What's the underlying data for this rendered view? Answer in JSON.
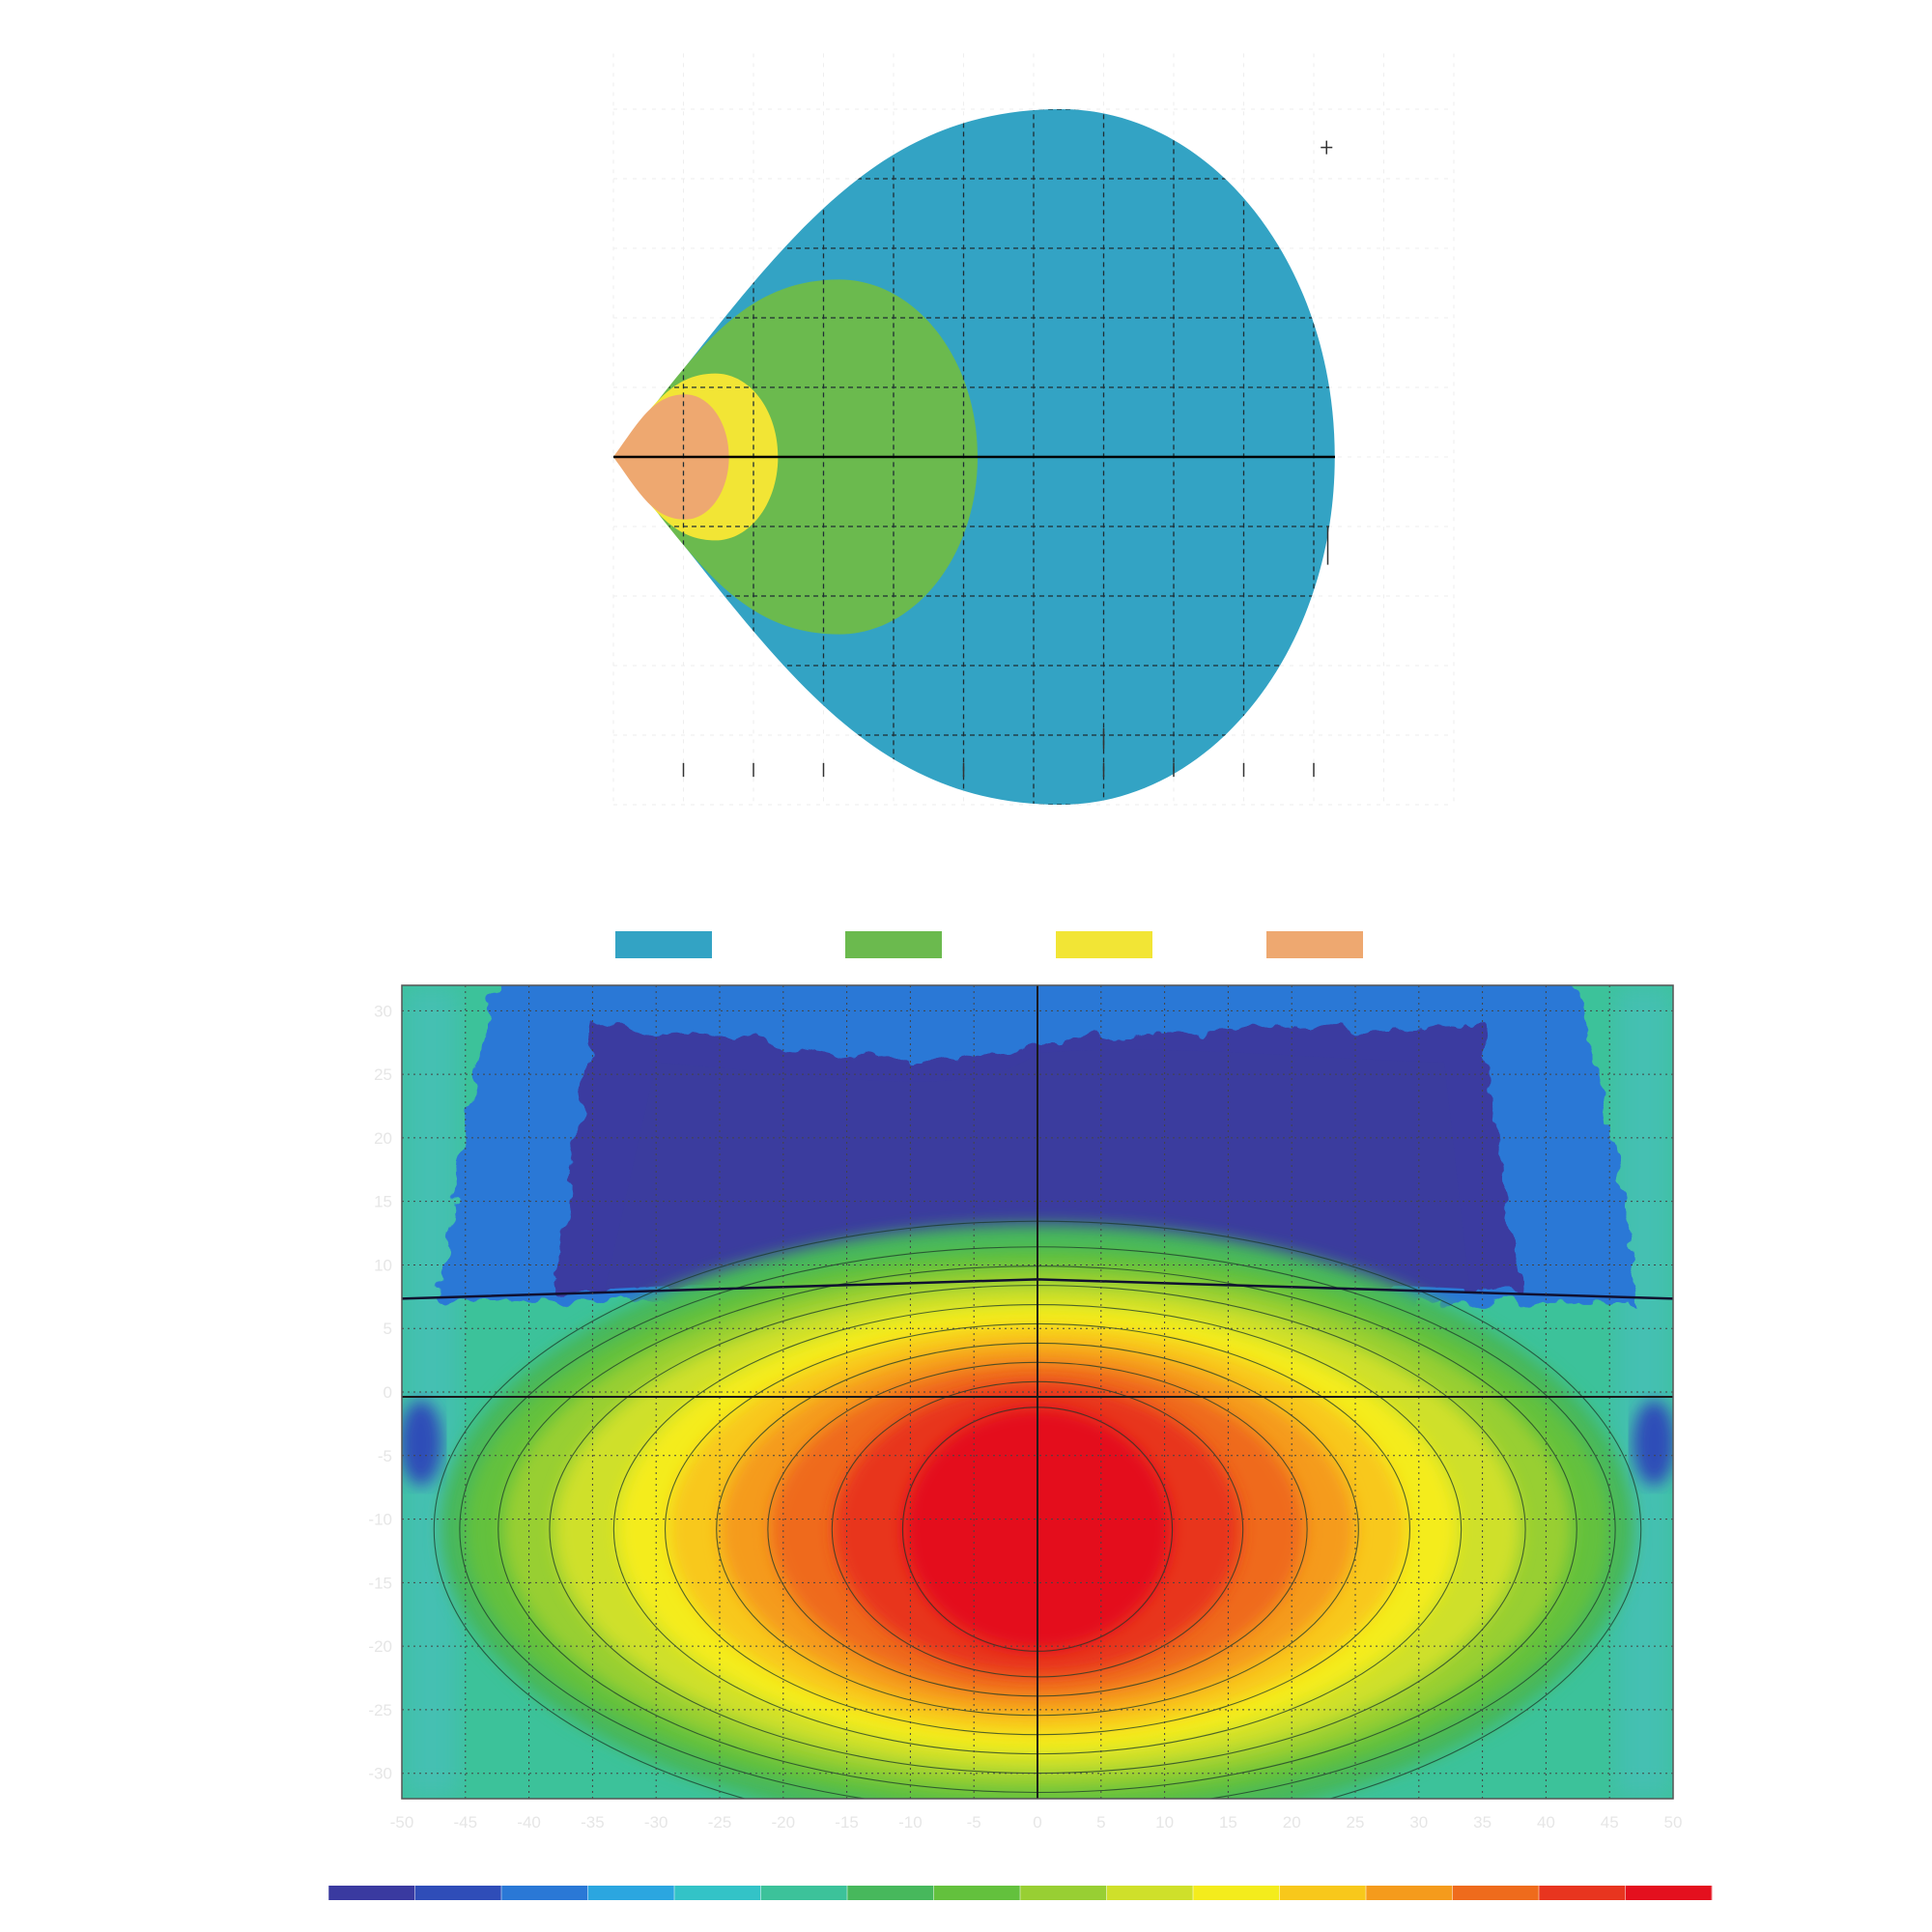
{
  "chart_data": [
    {
      "type": "area",
      "title": "",
      "description_kind": "isolux footprint",
      "grid": true,
      "grid_style": "dashed",
      "legend_placement": "bottom",
      "x_range": [
        0,
        12
      ],
      "y_range": [
        -5,
        5.8
      ],
      "zones": [
        {
          "color": "#33A3C4",
          "reach_x": 10.3,
          "half_width_y": 5.0
        },
        {
          "color": "#6BBA4E",
          "reach_x": 5.2,
          "half_width_y": 2.55
        },
        {
          "color": "#F2E535",
          "reach_x": 2.35,
          "half_width_y": 1.2
        },
        {
          "color": "#EEA870",
          "reach_x": 1.65,
          "half_width_y": 0.9
        }
      ],
      "legend": [
        {
          "color": "#33A3C4"
        },
        {
          "color": "#6BBA4E"
        },
        {
          "color": "#F2E535"
        },
        {
          "color": "#EEA870"
        }
      ]
    },
    {
      "type": "heatmap",
      "title": "",
      "description_kind": "isocandela contour map",
      "grid": true,
      "grid_style": "dotted",
      "x_range": [
        -50,
        50
      ],
      "y_range": [
        -32,
        32
      ],
      "x_ticks": [
        -50,
        -45,
        -40,
        -35,
        -30,
        -25,
        -20,
        -15,
        -10,
        -5,
        0,
        5,
        10,
        15,
        20,
        25,
        30,
        35,
        40,
        45,
        50
      ],
      "y_ticks": [
        30,
        25,
        20,
        15,
        10,
        5,
        0,
        -5,
        -10,
        -15,
        -20,
        -25,
        -30
      ],
      "hot_spot": {
        "x": 0,
        "y": -12
      },
      "cutoff_y": 7.5,
      "colorbar": {
        "placement": "bottom",
        "colors": [
          "#3a3aa0",
          "#2f4db8",
          "#2a78d6",
          "#2ba6e0",
          "#33c3c7",
          "#3cc29a",
          "#47b85c",
          "#63c13d",
          "#98cf33",
          "#cfe02a",
          "#f4ec1c",
          "#f8c81b",
          "#f59b1c",
          "#ef6b1c",
          "#e8351f",
          "#e4101e"
        ]
      }
    }
  ]
}
